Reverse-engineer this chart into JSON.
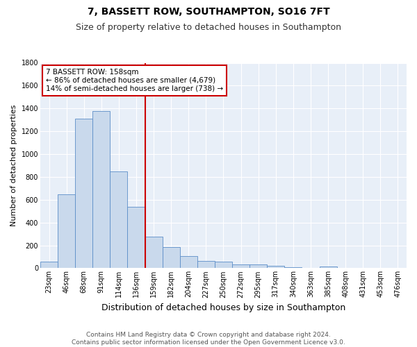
{
  "title": "7, BASSETT ROW, SOUTHAMPTON, SO16 7FT",
  "subtitle": "Size of property relative to detached houses in Southampton",
  "xlabel": "Distribution of detached houses by size in Southampton",
  "ylabel": "Number of detached properties",
  "footer_line1": "Contains HM Land Registry data © Crown copyright and database right 2024.",
  "footer_line2": "Contains public sector information licensed under the Open Government Licence v3.0.",
  "categories": [
    "23sqm",
    "46sqm",
    "68sqm",
    "91sqm",
    "114sqm",
    "136sqm",
    "159sqm",
    "182sqm",
    "204sqm",
    "227sqm",
    "250sqm",
    "272sqm",
    "295sqm",
    "317sqm",
    "340sqm",
    "363sqm",
    "385sqm",
    "408sqm",
    "431sqm",
    "453sqm",
    "476sqm"
  ],
  "values": [
    55,
    645,
    1310,
    1375,
    845,
    535,
    275,
    185,
    105,
    65,
    60,
    35,
    30,
    18,
    8,
    0,
    12,
    0,
    0,
    0,
    0
  ],
  "bar_color": "#c9d9ec",
  "bar_edge_color": "#5b8dc8",
  "background_color": "#e8eff8",
  "grid_color": "#ffffff",
  "annotation_text_line1": "7 BASSETT ROW: 158sqm",
  "annotation_text_line2": "← 86% of detached houses are smaller (4,679)",
  "annotation_text_line3": "14% of semi-detached houses are larger (738) →",
  "vline_color": "#cc0000",
  "annotation_box_edge_color": "#cc0000",
  "ylim": [
    0,
    1800
  ],
  "yticks": [
    0,
    200,
    400,
    600,
    800,
    1000,
    1200,
    1400,
    1600,
    1800
  ],
  "title_fontsize": 10,
  "subtitle_fontsize": 9,
  "xlabel_fontsize": 9,
  "ylabel_fontsize": 8,
  "tick_fontsize": 7,
  "annotation_fontsize": 7.5,
  "footer_fontsize": 6.5
}
